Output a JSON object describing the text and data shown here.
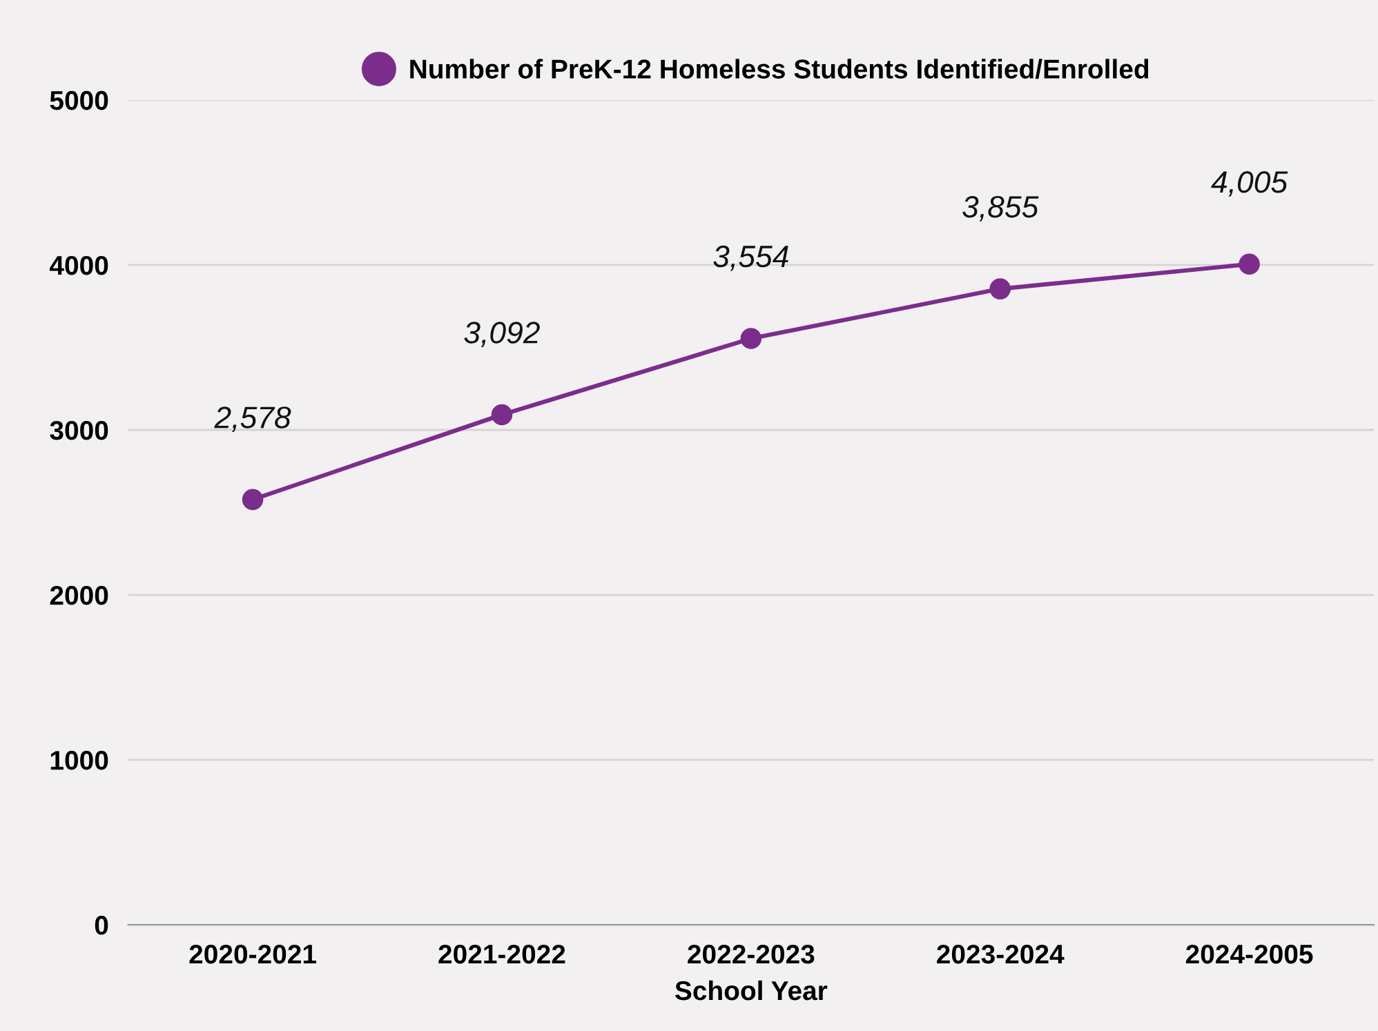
{
  "chart_data": {
    "type": "line",
    "xlabel": "School Year",
    "categories": [
      "2020-2021",
      "2021-2022",
      "2022-2023",
      "2023-2024",
      "2024-2005"
    ],
    "series": [
      {
        "name": "Number of PreK-12 Homeless Students Identified/Enrolled",
        "color": "#7b2d8c",
        "values": [
          2578,
          3092,
          3554,
          3855,
          4005
        ],
        "value_labels": [
          "2,578",
          "3,092",
          "3,554",
          "3,855",
          "4,005"
        ]
      }
    ],
    "ylim": [
      0,
      5000
    ],
    "yticks": [
      0,
      1000,
      2000,
      3000,
      4000,
      5000
    ],
    "grid": "y",
    "legend": "top",
    "marker": "circle",
    "line_style": "solid"
  }
}
